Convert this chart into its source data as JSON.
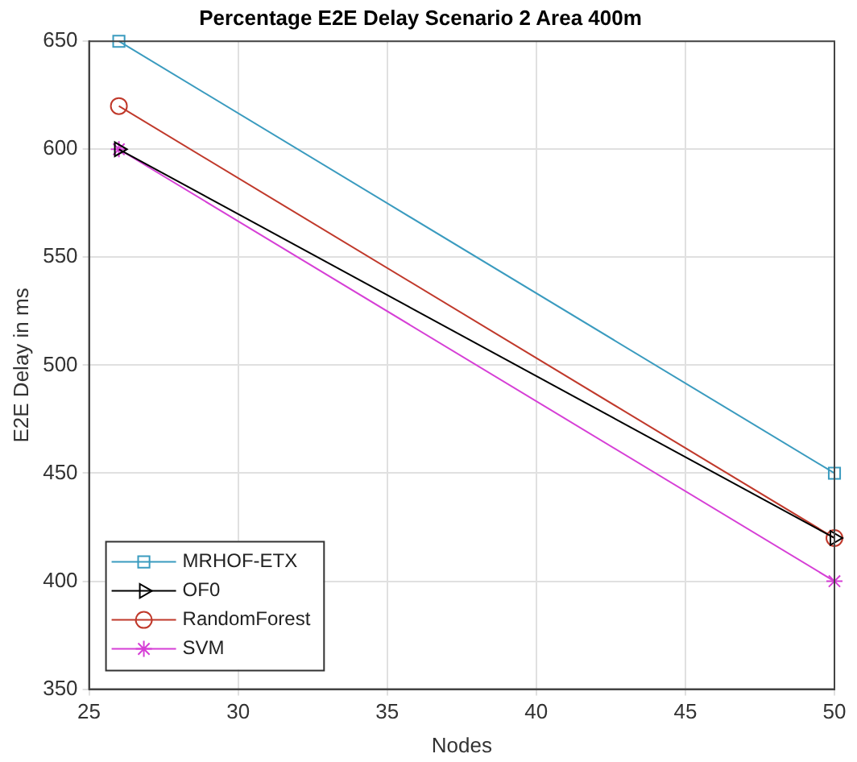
{
  "chart_data": {
    "type": "line",
    "title": "Percentage E2E Delay Scenario 2 Area 400m",
    "xlabel": "Nodes",
    "ylabel": "E2E Delay in ms",
    "x": [
      26,
      50
    ],
    "xlim": [
      25,
      50
    ],
    "xticks": [
      25,
      30,
      35,
      40,
      45,
      50
    ],
    "ylim": [
      350,
      650
    ],
    "yticks": [
      350,
      400,
      450,
      500,
      550,
      600,
      650
    ],
    "grid": true,
    "legend": "bottom left",
    "line_style": "solid",
    "series": [
      {
        "name": "MRHOF-ETX",
        "color": "#3a9bbf",
        "marker": "square",
        "values": [
          650,
          450
        ]
      },
      {
        "name": "OF0",
        "color": "#000000",
        "marker": "triangle",
        "values": [
          600,
          420
        ]
      },
      {
        "name": "RandomForest",
        "color": "#c0392b",
        "marker": "circle",
        "values": [
          620,
          420
        ]
      },
      {
        "name": "SVM",
        "color": "#d63fd6",
        "marker": "cross",
        "values": [
          600,
          400
        ]
      }
    ]
  }
}
